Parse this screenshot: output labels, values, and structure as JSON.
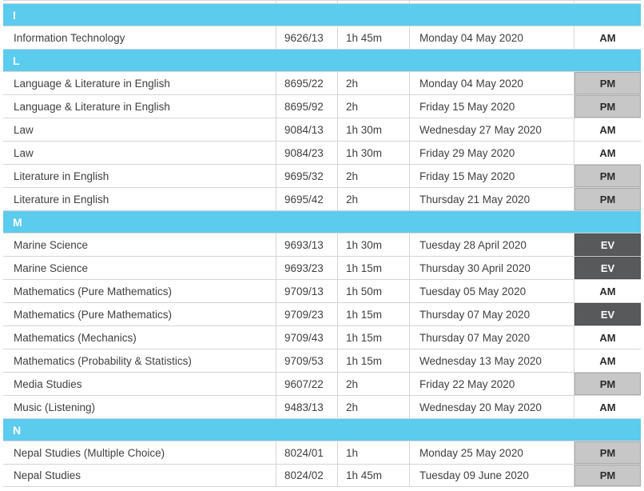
{
  "table": {
    "description": "Exam timetable grid",
    "colors": {
      "section_band": "#5bcbee",
      "section_letter_text": "#ffffff",
      "row_border": "#d6d6d6",
      "body_text": "#3f3f3f",
      "session_am_bg": "#ffffff",
      "session_pm_bg": "#c7c7c7",
      "session_ev_bg": "#58595b",
      "session_ev_text": "#ffffff"
    },
    "rows": [
      {
        "type": "section",
        "letter": "I"
      },
      {
        "type": "exam",
        "subject": "Information Technology",
        "code": "9626/13",
        "duration": "1h 45m",
        "date": "Monday 04 May 2020",
        "session": "AM"
      },
      {
        "type": "section",
        "letter": "L"
      },
      {
        "type": "exam",
        "subject": "Language & Literature in English",
        "code": "8695/22",
        "duration": "2h",
        "date": "Monday 04 May 2020",
        "session": "PM"
      },
      {
        "type": "exam",
        "subject": "Language & Literature in English",
        "code": "8695/92",
        "duration": "2h",
        "date": "Friday 15 May 2020",
        "session": "PM"
      },
      {
        "type": "exam",
        "subject": "Law",
        "code": "9084/13",
        "duration": "1h 30m",
        "date": "Wednesday 27 May 2020",
        "session": "AM"
      },
      {
        "type": "exam",
        "subject": "Law",
        "code": "9084/23",
        "duration": "1h 30m",
        "date": "Friday 29 May 2020",
        "session": "AM"
      },
      {
        "type": "exam",
        "subject": "Literature in English",
        "code": "9695/32",
        "duration": "2h",
        "date": "Friday 15 May 2020",
        "session": "PM"
      },
      {
        "type": "exam",
        "subject": "Literature in English",
        "code": "9695/42",
        "duration": "2h",
        "date": "Thursday 21 May 2020",
        "session": "PM"
      },
      {
        "type": "section",
        "letter": "M"
      },
      {
        "type": "exam",
        "subject": "Marine Science",
        "code": "9693/13",
        "duration": "1h 30m",
        "date": "Tuesday 28 April 2020",
        "session": "EV"
      },
      {
        "type": "exam",
        "subject": "Marine Science",
        "code": "9693/23",
        "duration": "1h 15m",
        "date": "Thursday 30 April 2020",
        "session": "EV"
      },
      {
        "type": "exam",
        "subject": "Mathematics (Pure Mathematics)",
        "code": "9709/13",
        "duration": "1h 50m",
        "date": "Tuesday 05 May 2020",
        "session": "AM"
      },
      {
        "type": "exam",
        "subject": "Mathematics (Pure Mathematics)",
        "code": "9709/23",
        "duration": "1h 15m",
        "date": "Thursday 07 May 2020",
        "session": "EV"
      },
      {
        "type": "exam",
        "subject": "Mathematics (Mechanics)",
        "code": "9709/43",
        "duration": "1h 15m",
        "date": "Thursday 07 May 2020",
        "session": "AM"
      },
      {
        "type": "exam",
        "subject": "Mathematics (Probability & Statistics)",
        "code": "9709/53",
        "duration": "1h 15m",
        "date": "Wednesday 13 May 2020",
        "session": "AM"
      },
      {
        "type": "exam",
        "subject": "Media Studies",
        "code": "9607/22",
        "duration": "2h",
        "date": "Friday 22 May 2020",
        "session": "PM"
      },
      {
        "type": "exam",
        "subject": "Music (Listening)",
        "code": "9483/13",
        "duration": "2h",
        "date": "Wednesday 20 May 2020",
        "session": "AM"
      },
      {
        "type": "section",
        "letter": "N"
      },
      {
        "type": "exam",
        "subject": "Nepal Studies (Multiple Choice)",
        "code": "8024/01",
        "duration": "1h",
        "date": "Monday 25 May 2020",
        "session": "PM"
      },
      {
        "type": "exam",
        "subject": "Nepal Studies",
        "code": "8024/02",
        "duration": "1h 45m",
        "date": "Tuesday 09 June 2020",
        "session": "PM"
      }
    ]
  }
}
